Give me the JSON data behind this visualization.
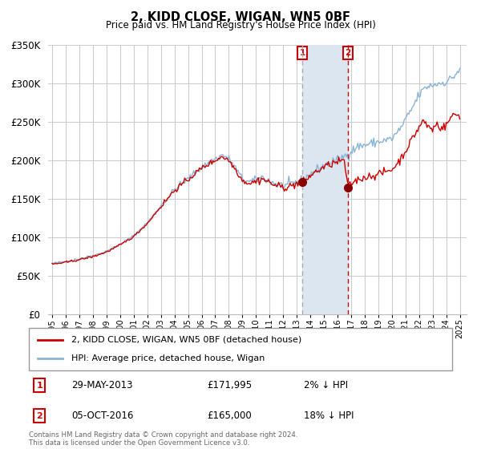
{
  "title": "2, KIDD CLOSE, WIGAN, WN5 0BF",
  "subtitle": "Price paid vs. HM Land Registry's House Price Index (HPI)",
  "hpi_label": "HPI: Average price, detached house, Wigan",
  "property_label": "2, KIDD CLOSE, WIGAN, WN5 0BF (detached house)",
  "sale1_date": "29-MAY-2013",
  "sale1_price": 171995,
  "sale1_price_str": "£171,995",
  "sale1_pct": "2% ↓ HPI",
  "sale2_date": "05-OCT-2016",
  "sale2_price": 165000,
  "sale2_price_str": "£165,000",
  "sale2_pct": "18% ↓ HPI",
  "footer": "Contains HM Land Registry data © Crown copyright and database right 2024.\nThis data is licensed under the Open Government Licence v3.0.",
  "ylim": [
    0,
    350000
  ],
  "yticks": [
    0,
    50000,
    100000,
    150000,
    200000,
    250000,
    300000,
    350000
  ],
  "xlim_start": 1994.7,
  "xlim_end": 2025.5,
  "hpi_color": "#8ab4d8",
  "property_color": "#cc0000",
  "shade_color": "#dce6f1",
  "vline1_color": "#aaaaaa",
  "vline2_color": "#cc0000",
  "background_color": "#ffffff",
  "grid_color": "#cccccc",
  "sale1_x": 2013.41,
  "sale2_x": 2016.76
}
